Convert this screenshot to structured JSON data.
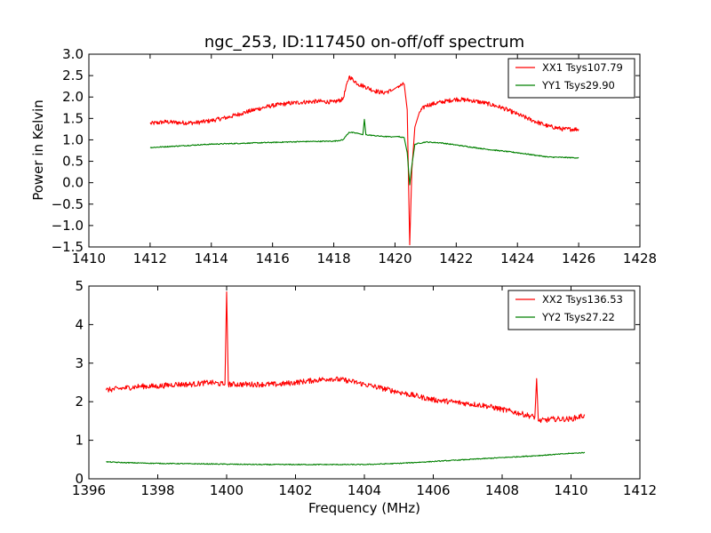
{
  "figure": {
    "title": "ngc_253, ID:117450 on-off/off spectrum",
    "xlabel": "Frequency (MHz)",
    "ylabel": "Power in Kelvin"
  },
  "chart_data": [
    {
      "type": "line",
      "xlabel": "",
      "ylabel": "Power in Kelvin",
      "xlim": [
        1410,
        1428
      ],
      "ylim": [
        -1.5,
        3.0
      ],
      "xticks": [
        "1410",
        "1412",
        "1414",
        "1416",
        "1418",
        "1420",
        "1422",
        "1424",
        "1426",
        "1428"
      ],
      "yticks": [
        "−1.5",
        "−1.0",
        "−0.5",
        "0.0",
        "0.5",
        "1.0",
        "1.5",
        "2.0",
        "2.5",
        "3.0"
      ],
      "legend": "top-right",
      "grid": false,
      "series": [
        {
          "name": "XX1 Tsys107.79",
          "color": "#ff0000",
          "x": [
            1412,
            1412.5,
            1413,
            1413.5,
            1414,
            1414.5,
            1415,
            1415.5,
            1416,
            1416.5,
            1417,
            1417.5,
            1418,
            1418.3,
            1418.5,
            1418.8,
            1419,
            1419.3,
            1419.6,
            1419.9,
            1420.1,
            1420.3,
            1420.4,
            1420.48,
            1420.55,
            1420.65,
            1420.8,
            1421,
            1421.5,
            1422,
            1422.5,
            1423,
            1423.5,
            1424,
            1424.5,
            1425,
            1425.5,
            1426
          ],
          "y": [
            1.38,
            1.42,
            1.4,
            1.4,
            1.45,
            1.52,
            1.62,
            1.72,
            1.8,
            1.85,
            1.88,
            1.9,
            1.88,
            1.95,
            2.48,
            2.3,
            2.25,
            2.15,
            2.1,
            2.15,
            2.25,
            2.3,
            1.7,
            -1.45,
            0.3,
            1.3,
            1.65,
            1.8,
            1.88,
            1.95,
            1.92,
            1.85,
            1.75,
            1.6,
            1.45,
            1.32,
            1.25,
            1.25
          ]
        },
        {
          "name": "YY1 Tsys29.90",
          "color": "#008000",
          "x": [
            1412,
            1413,
            1414,
            1415,
            1416,
            1417,
            1418,
            1418.3,
            1418.5,
            1418.8,
            1418.95,
            1419,
            1419.05,
            1419.3,
            1419.6,
            1419.9,
            1420.1,
            1420.3,
            1420.4,
            1420.48,
            1420.55,
            1420.65,
            1421,
            1421.5,
            1422,
            1423,
            1424,
            1425,
            1426
          ],
          "y": [
            0.82,
            0.86,
            0.9,
            0.92,
            0.94,
            0.96,
            0.97,
            1.0,
            1.18,
            1.15,
            1.12,
            1.48,
            1.12,
            1.1,
            1.08,
            1.07,
            1.08,
            1.05,
            0.7,
            -0.05,
            0.4,
            0.9,
            0.95,
            0.93,
            0.88,
            0.78,
            0.7,
            0.6,
            0.58
          ]
        }
      ]
    },
    {
      "type": "line",
      "xlabel": "Frequency (MHz)",
      "ylabel": "",
      "xlim": [
        1396,
        1412
      ],
      "ylim": [
        0,
        5
      ],
      "xticks": [
        "1396",
        "1398",
        "1400",
        "1402",
        "1404",
        "1406",
        "1408",
        "1410",
        "1412"
      ],
      "yticks": [
        "0",
        "1",
        "2",
        "3",
        "4",
        "5"
      ],
      "legend": "top-right",
      "grid": false,
      "series": [
        {
          "name": "XX2 Tsys136.53",
          "color": "#ff0000",
          "x": [
            1396.5,
            1397,
            1397.5,
            1398,
            1398.5,
            1399,
            1399.5,
            1399.95,
            1400,
            1400.05,
            1400.5,
            1401,
            1401.5,
            1402,
            1402.5,
            1403,
            1403.5,
            1404,
            1404.5,
            1405,
            1405.5,
            1406,
            1406.5,
            1407,
            1407.5,
            1408,
            1408.5,
            1408.95,
            1409,
            1409.05,
            1409.5,
            1410,
            1410.4
          ],
          "y": [
            2.3,
            2.35,
            2.4,
            2.4,
            2.45,
            2.45,
            2.5,
            2.45,
            4.85,
            2.45,
            2.45,
            2.45,
            2.45,
            2.5,
            2.55,
            2.6,
            2.55,
            2.45,
            2.35,
            2.25,
            2.15,
            2.05,
            2.0,
            1.95,
            1.9,
            1.8,
            1.7,
            1.6,
            2.6,
            1.5,
            1.55,
            1.55,
            1.65
          ]
        },
        {
          "name": "YY2 Tsys27.22",
          "color": "#008000",
          "x": [
            1396.5,
            1397,
            1398,
            1399,
            1400,
            1401,
            1402,
            1403,
            1404,
            1405,
            1406,
            1407,
            1408,
            1409,
            1410,
            1410.4
          ],
          "y": [
            0.44,
            0.42,
            0.4,
            0.39,
            0.38,
            0.37,
            0.37,
            0.37,
            0.37,
            0.4,
            0.45,
            0.5,
            0.55,
            0.6,
            0.66,
            0.68
          ]
        }
      ]
    }
  ]
}
